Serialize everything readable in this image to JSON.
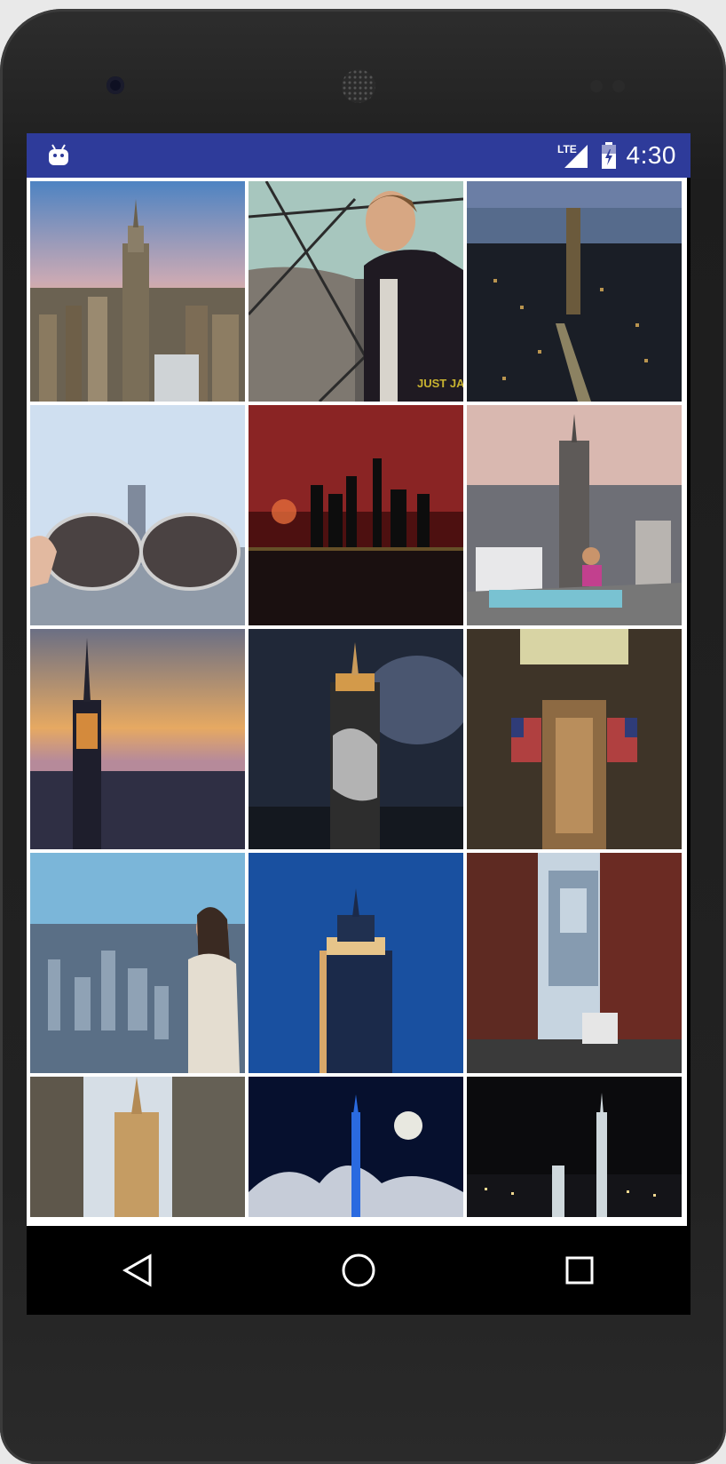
{
  "status_bar": {
    "network": "LTE",
    "time": "4:30",
    "battery_level": 0.6
  },
  "gallery": {
    "photos": [
      {
        "id": "nyc-empire-sunset-skyline"
      },
      {
        "id": "man-at-observation-deck",
        "watermark": "JUST JARED"
      },
      {
        "id": "midtown-night-aerial"
      },
      {
        "id": "sunglasses-reflection-empire"
      },
      {
        "id": "fireworks-night-skyline"
      },
      {
        "id": "yoga-rooftop-empire"
      },
      {
        "id": "empire-dusk-lit"
      },
      {
        "id": "empire-leopard-projection"
      },
      {
        "id": "empire-lobby-flags"
      },
      {
        "id": "woman-balcony-skyline"
      },
      {
        "id": "empire-blue-sky"
      },
      {
        "id": "manhattan-bridge-dumbo"
      },
      {
        "id": "empire-between-buildings"
      },
      {
        "id": "empire-moon-clouds"
      },
      {
        "id": "one-wtc-night"
      }
    ]
  },
  "nav": {
    "back": "back",
    "home": "home",
    "recents": "recents"
  }
}
